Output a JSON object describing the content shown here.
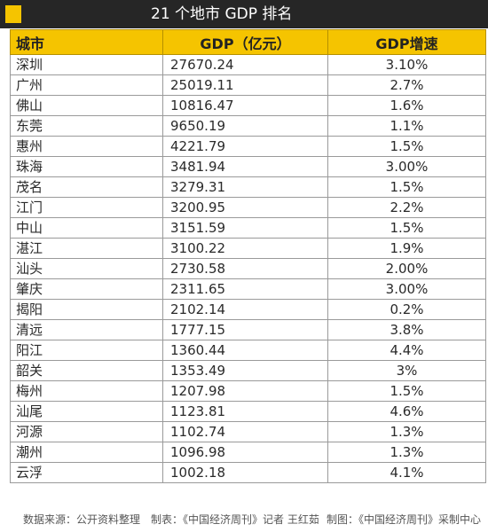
{
  "title": "21 个地市 GDP 排名",
  "accent_color": "#f5c400",
  "title_bar_color": "#262626",
  "table": {
    "headers": [
      "城市",
      "GDP（亿元）",
      "GDP增速"
    ],
    "rows": [
      [
        "深圳",
        "27670.24",
        "3.10%"
      ],
      [
        "广州",
        "25019.11",
        "2.7%"
      ],
      [
        "佛山",
        "10816.47",
        "1.6%"
      ],
      [
        "东莞",
        "9650.19",
        "1.1%"
      ],
      [
        "惠州",
        "4221.79",
        "1.5%"
      ],
      [
        "珠海",
        "3481.94",
        "3.00%"
      ],
      [
        "茂名",
        "3279.31",
        "1.5%"
      ],
      [
        "江门",
        "3200.95",
        "2.2%"
      ],
      [
        "中山",
        "3151.59",
        "1.5%"
      ],
      [
        "湛江",
        "3100.22",
        "1.9%"
      ],
      [
        "汕头",
        "2730.58",
        "2.00%"
      ],
      [
        "肇庆",
        "2311.65",
        "3.00%"
      ],
      [
        "揭阳",
        "2102.14",
        "0.2%"
      ],
      [
        "清远",
        "1777.15",
        "3.8%"
      ],
      [
        "阳江",
        "1360.44",
        "4.4%"
      ],
      [
        "韶关",
        "1353.49",
        "3%"
      ],
      [
        "梅州",
        "1207.98",
        "1.5%"
      ],
      [
        "汕尾",
        "1123.81",
        "4.6%"
      ],
      [
        "河源",
        "1102.74",
        "1.3%"
      ],
      [
        "潮州",
        "1096.98",
        "1.3%"
      ],
      [
        "云浮",
        "1002.18",
        "4.1%"
      ]
    ]
  },
  "footer": {
    "source": "数据来源：公开资料整理",
    "maker": "制表：《中国经济周刊》记者 王红茹",
    "chart": "制图：《中国经济周刊》采制中心"
  }
}
